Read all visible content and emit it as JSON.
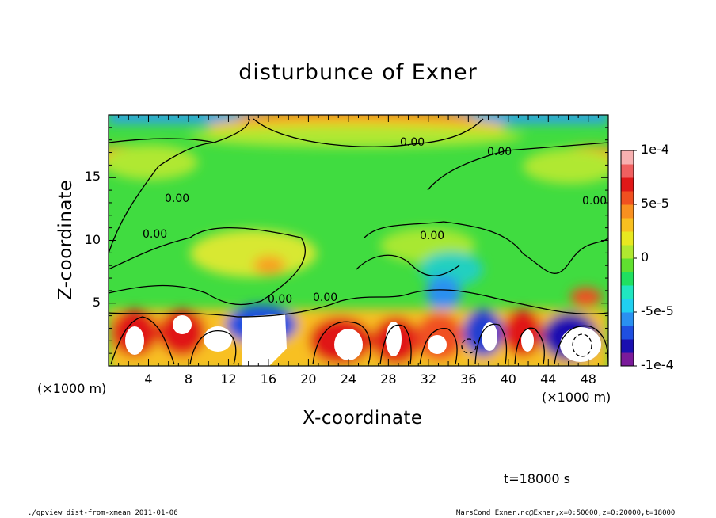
{
  "chart_data": {
    "type": "heatmap",
    "title": "disturbunce of Exner",
    "xlabel": "X-coordinate",
    "ylabel": "Z-coordinate",
    "x_unit_left": "(×1000 m)",
    "x_unit_right": "(×1000 m)",
    "xlim": [
      0,
      50
    ],
    "ylim": [
      0,
      20
    ],
    "x_ticks": [
      4,
      8,
      12,
      16,
      20,
      24,
      28,
      32,
      36,
      40,
      44,
      48
    ],
    "y_ticks": [
      5,
      10,
      15
    ],
    "colorbar": {
      "range": [
        -0.0001,
        0.0001
      ],
      "tick_labels": [
        "1e-4",
        "5e-5",
        "0",
        "-5e-5",
        "-1e-4"
      ],
      "colors": [
        "#7a1a9a",
        "#1a10b0",
        "#1f4fe0",
        "#2a90f0",
        "#20d0f0",
        "#20e6c0",
        "#20e060",
        "#60e030",
        "#b0e830",
        "#e8e820",
        "#f8c020",
        "#f89020",
        "#f05020",
        "#e01818",
        "#f06060",
        "#f8b0b0"
      ]
    },
    "contour_labels": [
      "0.00",
      "0.00",
      "0.00",
      "0.00",
      "0.00",
      "0.00",
      "0.00",
      "0.00"
    ],
    "time_label": "t=18000 s"
  },
  "footer": {
    "left": "./gpview_dist-from-xmean  2011-01-06",
    "right": "MarsCond_Exner.nc@Exner,x=0:50000,z=0:20000,t=18000"
  }
}
